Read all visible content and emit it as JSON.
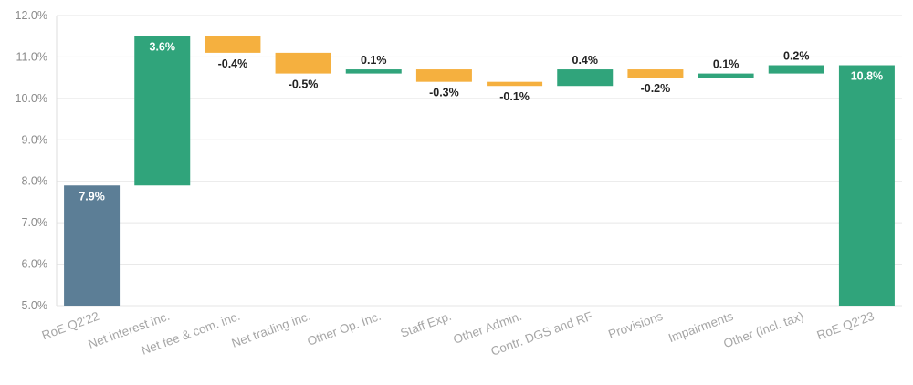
{
  "chart_data": {
    "type": "bar",
    "subtype": "waterfall",
    "y_unit": "%",
    "ylim": [
      5.0,
      12.0
    ],
    "y_ticks": [
      "5.0%",
      "6.0%",
      "7.0%",
      "8.0%",
      "9.0%",
      "10.0%",
      "11.0%",
      "12.0%"
    ],
    "y_tick_values": [
      5,
      6,
      7,
      8,
      9,
      10,
      11,
      12
    ],
    "grid": true,
    "categories": [
      "RoE Q2'22",
      "Net interest inc.",
      "Net fee & com. inc.",
      "Net trading inc.",
      "Other Op. Inc.",
      "Staff Exp.",
      "Other Admin.",
      "Contr. DGS and RF",
      "Provisions",
      "Impairments",
      "Other (incl. tax)",
      "RoE Q2'23"
    ],
    "bars": [
      {
        "kind": "total",
        "start": 5.0,
        "end": 7.9,
        "label": "7.9%"
      },
      {
        "kind": "increase",
        "start": 7.9,
        "end": 11.5,
        "label": "3.6%"
      },
      {
        "kind": "decrease",
        "start": 11.5,
        "end": 11.1,
        "label": "-0.4%"
      },
      {
        "kind": "decrease",
        "start": 11.1,
        "end": 10.6,
        "label": "-0.5%"
      },
      {
        "kind": "increase",
        "start": 10.6,
        "end": 10.7,
        "label": "0.1%"
      },
      {
        "kind": "decrease",
        "start": 10.7,
        "end": 10.4,
        "label": "-0.3%"
      },
      {
        "kind": "decrease",
        "start": 10.4,
        "end": 10.3,
        "label": "-0.1%"
      },
      {
        "kind": "increase",
        "start": 10.3,
        "end": 10.7,
        "label": "0.4%"
      },
      {
        "kind": "decrease",
        "start": 10.7,
        "end": 10.5,
        "label": "-0.2%"
      },
      {
        "kind": "increase",
        "start": 10.5,
        "end": 10.6,
        "label": "0.1%"
      },
      {
        "kind": "increase",
        "start": 10.6,
        "end": 10.8,
        "label": "0.2%"
      },
      {
        "kind": "total_end",
        "start": 5.0,
        "end": 10.8,
        "label": "10.8%"
      }
    ],
    "colors": {
      "start_total": "#5c7e96",
      "increase": "#30a47b",
      "decrease": "#f5b03f",
      "grid": "#e6e6e6",
      "label_dark": "#222222",
      "label_light": "#ffffff"
    }
  }
}
